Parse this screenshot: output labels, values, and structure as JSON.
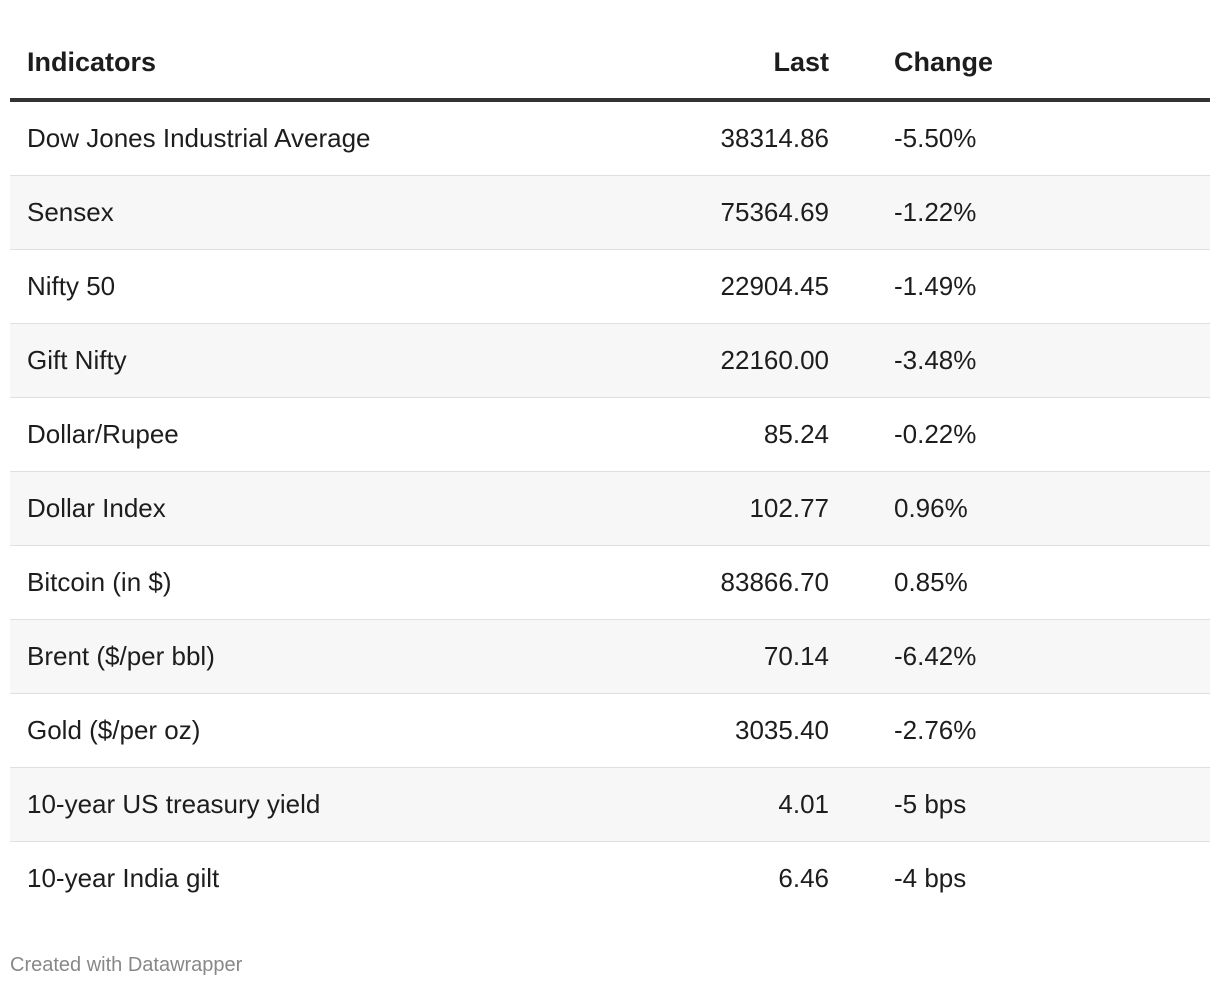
{
  "table": {
    "headers": {
      "indicator": "Indicators",
      "last": "Last",
      "change": "Change"
    },
    "rows": [
      {
        "indicator": "Dow Jones Industrial Average",
        "last": "38314.86",
        "change": "-5.50%"
      },
      {
        "indicator": "Sensex",
        "last": "75364.69",
        "change": "-1.22%"
      },
      {
        "indicator": "Nifty 50",
        "last": "22904.45",
        "change": "-1.49%"
      },
      {
        "indicator": "Gift Nifty",
        "last": "22160.00",
        "change": "-3.48%"
      },
      {
        "indicator": "Dollar/Rupee",
        "last": "85.24",
        "change": "-0.22%"
      },
      {
        "indicator": "Dollar Index",
        "last": "102.77",
        "change": "0.96%"
      },
      {
        "indicator": "Bitcoin (in $)",
        "last": "83866.70",
        "change": "0.85%"
      },
      {
        "indicator": "Brent ($/per bbl)",
        "last": "70.14",
        "change": "-6.42%"
      },
      {
        "indicator": "Gold ($/per oz)",
        "last": "3035.40",
        "change": "-2.76%"
      },
      {
        "indicator": "10-year US treasury yield",
        "last": "4.01",
        "change": "-5 bps"
      },
      {
        "indicator": "10-year India gilt",
        "last": "6.46",
        "change": "-4 bps"
      }
    ]
  },
  "footer": {
    "credit": "Created with Datawrapper"
  }
}
